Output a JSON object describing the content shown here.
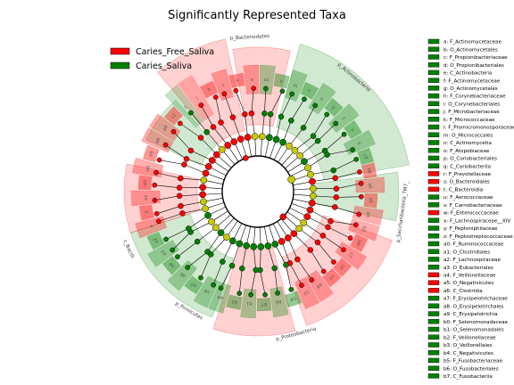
{
  "chart_data": {
    "type": "cladogram",
    "title": "Significantly Represented Taxa",
    "legend": [
      {
        "name": "Caries_Free_Saliva",
        "color": "#ff0000"
      },
      {
        "name": "Caries_Saliva",
        "color": "#008000"
      }
    ],
    "legend_position": "top-left",
    "colors": {
      "Caries_Free_Saliva": "#ff0000",
      "Caries_Saliva": "#008000",
      "nonsig": "#c8c800"
    },
    "ring_labels": [
      {
        "text": "p_Bacteroidetes",
        "group": "Caries_Free_Saliva"
      },
      {
        "text": "p_Actinobacteria",
        "group": "Caries_Saliva"
      },
      {
        "text": "p_Saccharibacteria_TM7_",
        "group": "Caries_Saliva"
      },
      {
        "text": "p_Proteobacteria",
        "group": "Caries_Free_Saliva"
      },
      {
        "text": "p_Firmicutes",
        "group": "Caries_Saliva"
      },
      {
        "text": "c_Bacilli",
        "group": "Caries_Saliva"
      }
    ],
    "sectors": [
      {
        "lbl": "z",
        "group": "Caries_Saliva",
        "level": 0
      },
      {
        "lbl": "i",
        "group": "Caries_Free_Saliva",
        "level": 0
      },
      {
        "lbl": "b",
        "group": "Caries_Free_Saliva",
        "level": 2
      },
      {
        "lbl": "c",
        "group": "Caries_Free_Saliva",
        "level": 1
      },
      {
        "lbl": "k",
        "group": "Caries_Free_Saliva",
        "level": 2
      },
      {
        "lbl": "a",
        "group": "Caries_Free_Saliva",
        "level": 1
      },
      {
        "lbl": "a1",
        "group": "Caries_Saliva",
        "level": 1
      },
      {
        "lbl": "y",
        "group": "Caries_Saliva",
        "level": 2
      },
      {
        "lbl": "m",
        "group": "Caries_Saliva",
        "level": 1
      },
      {
        "lbl": "h",
        "group": "Caries_Saliva",
        "level": 2
      },
      {
        "lbl": "n",
        "group": "Caries_Saliva",
        "level": 1
      },
      {
        "lbl": "g",
        "group": "Caries_Saliva",
        "level": 2
      },
      {
        "lbl": "f",
        "group": "Caries_Saliva",
        "level": 1
      },
      {
        "lbl": "e",
        "group": "Caries_Saliva",
        "level": 2
      },
      {
        "lbl": "o",
        "group": "Caries_Saliva",
        "level": 1
      },
      {
        "lbl": "c3",
        "group": "Caries_Saliva",
        "level": 2
      },
      {
        "lbl": "b8",
        "group": "Caries_Free_Saliva",
        "level": 2
      },
      {
        "lbl": "a0",
        "group": "Caries_Free_Saliva",
        "level": 1
      },
      {
        "lbl": "a5",
        "group": "Caries_Free_Saliva",
        "level": 2
      },
      {
        "lbl": "b5",
        "group": "Caries_Free_Saliva",
        "level": 1
      },
      {
        "lbl": "b3",
        "group": "Caries_Free_Saliva",
        "level": 1
      },
      {
        "lbl": "b0",
        "group": "Caries_Free_Saliva",
        "level": 2
      },
      {
        "lbl": "c7",
        "group": "Caries_Free_Saliva",
        "level": 1
      },
      {
        "lbl": "c0",
        "group": "Caries_Free_Saliva",
        "level": 2
      },
      {
        "lbl": "c5",
        "group": "Caries_Free_Saliva",
        "level": 2
      },
      {
        "lbl": "b9",
        "group": "Caries_Free_Saliva",
        "level": 1
      },
      {
        "lbl": "c2",
        "group": "Caries_Free_Saliva",
        "level": 1
      },
      {
        "lbl": "b4",
        "group": "Caries_Saliva",
        "level": 2
      },
      {
        "lbl": "b6",
        "group": "Caries_Saliva",
        "level": 1
      },
      {
        "lbl": "b7",
        "group": "Caries_Saliva",
        "level": 2
      },
      {
        "lbl": "b1",
        "group": "Caries_Saliva",
        "level": 1
      },
      {
        "lbl": "b2",
        "group": "Caries_Saliva",
        "level": 2
      },
      {
        "lbl": "a9",
        "group": "Caries_Saliva",
        "level": 1
      },
      {
        "lbl": "a8",
        "group": "Caries_Saliva",
        "level": 1
      },
      {
        "lbl": "a7",
        "group": "Caries_Saliva",
        "level": 2
      },
      {
        "lbl": "a6",
        "group": "Caries_Saliva",
        "level": 1
      },
      {
        "lbl": "a4",
        "group": "Caries_Saliva",
        "level": 2
      },
      {
        "lbl": "a3",
        "group": "Caries_Saliva",
        "level": 1
      },
      {
        "lbl": "a2",
        "group": "Caries_Saliva",
        "level": 2
      },
      {
        "lbl": "a",
        "group": "Caries_Free_Saliva",
        "level": 1
      },
      {
        "lbl": "d",
        "group": "Caries_Free_Saliva",
        "level": 2
      },
      {
        "lbl": "a1",
        "group": "Caries_Free_Saliva",
        "level": 1
      },
      {
        "lbl": "d0",
        "group": "Caries_Free_Saliva",
        "level": 2
      },
      {
        "lbl": "b0",
        "group": "Caries_Free_Saliva",
        "level": 1
      },
      {
        "lbl": "a9",
        "group": "Caries_Free_Saliva",
        "level": 2
      },
      {
        "lbl": "a0",
        "group": "Caries_Free_Saliva",
        "level": 1
      },
      {
        "lbl": "a9",
        "group": "Caries_Free_Saliva",
        "level": 1
      },
      {
        "lbl": "c1",
        "group": "Caries_Free_Saliva",
        "level": 2
      }
    ],
    "key": [
      {
        "text": "a: F_Actinomycetaceae",
        "group": "Caries_Saliva"
      },
      {
        "text": "b: O_Actinomycetales",
        "group": "Caries_Saliva"
      },
      {
        "text": "c: F_Propionibacteriaceae",
        "group": "Caries_Saliva"
      },
      {
        "text": "d: O_Propionibacteriales",
        "group": "Caries_Saliva"
      },
      {
        "text": "e: C_Actinobacteria",
        "group": "Caries_Saliva"
      },
      {
        "text": "f: F_Actinomycetaceae",
        "group": "Caries_Saliva"
      },
      {
        "text": "g: O_Actinomycetales",
        "group": "Caries_Saliva"
      },
      {
        "text": "h: F_Corynebacteriaceae",
        "group": "Caries_Saliva"
      },
      {
        "text": "i: O_Corynebacteriales",
        "group": "Caries_Saliva"
      },
      {
        "text": "j: F_Microbacteriaceae",
        "group": "Caries_Saliva"
      },
      {
        "text": "k: F_Micrococcaceae",
        "group": "Caries_Saliva"
      },
      {
        "text": "l: F_Promicromonosporaceae",
        "group": "Caries_Saliva"
      },
      {
        "text": "m: O_Micrococcales",
        "group": "Caries_Saliva"
      },
      {
        "text": "n: C_Actinomycetia",
        "group": "Caries_Saliva"
      },
      {
        "text": "o: F_Atopobiaceae",
        "group": "Caries_Saliva"
      },
      {
        "text": "p: O_Coriobacteriales",
        "group": "Caries_Saliva"
      },
      {
        "text": "q: C_Coriobacteriia",
        "group": "Caries_Saliva"
      },
      {
        "text": "r: F_Prevotellaceae",
        "group": "Caries_Free_Saliva"
      },
      {
        "text": "s: O_Bacteroidales",
        "group": "Caries_Free_Saliva"
      },
      {
        "text": "t: C_Bacteroidia",
        "group": "Caries_Free_Saliva"
      },
      {
        "text": "u: F_Aerococcaceae",
        "group": "Caries_Saliva"
      },
      {
        "text": "v: F_Carnobacteriaceae",
        "group": "Caries_Saliva"
      },
      {
        "text": "w: F_Enterococcaceae",
        "group": "Caries_Free_Saliva"
      },
      {
        "text": "x: F_Lachnospiraceae__XIV",
        "group": "Caries_Saliva"
      },
      {
        "text": "y: F_Peptoniphilaceae",
        "group": "Caries_Saliva"
      },
      {
        "text": "z: F_Peptostreptococcaceae",
        "group": "Caries_Saliva"
      },
      {
        "text": "a0: F_Ruminococcaceae",
        "group": "Caries_Saliva"
      },
      {
        "text": "a1: O_Clostridiales",
        "group": "Caries_Saliva"
      },
      {
        "text": "a2: F_Lachnospiraceae",
        "group": "Caries_Saliva"
      },
      {
        "text": "a3: O_Eubacteriales",
        "group": "Caries_Saliva"
      },
      {
        "text": "a4: F_Veillonellaceae",
        "group": "Caries_Free_Saliva"
      },
      {
        "text": "a5: O_Negativicutes",
        "group": "Caries_Free_Saliva"
      },
      {
        "text": "a6: C_Clostridia",
        "group": "Caries_Free_Saliva"
      },
      {
        "text": "a7: F_Erysipelotrichaceae",
        "group": "Caries_Saliva"
      },
      {
        "text": "a8: O_Erysipelotrichales",
        "group": "Caries_Saliva"
      },
      {
        "text": "a9: C_Erysipelotrichia",
        "group": "Caries_Saliva"
      },
      {
        "text": "b0: F_Selenomonadaceae",
        "group": "Caries_Saliva"
      },
      {
        "text": "b1: O_Selenomonadales",
        "group": "Caries_Saliva"
      },
      {
        "text": "b2: F_Veillonellaceae",
        "group": "Caries_Saliva"
      },
      {
        "text": "b3: O_Veillonellales",
        "group": "Caries_Saliva"
      },
      {
        "text": "b4: C_Negativicutes",
        "group": "Caries_Saliva"
      },
      {
        "text": "b5: F_Fusobacteriaceae",
        "group": "Caries_Saliva"
      },
      {
        "text": "b6: O_Fusobacteriales",
        "group": "Caries_Saliva"
      },
      {
        "text": "b7: C_Fusobacteriia",
        "group": "Caries_Saliva"
      }
    ]
  }
}
